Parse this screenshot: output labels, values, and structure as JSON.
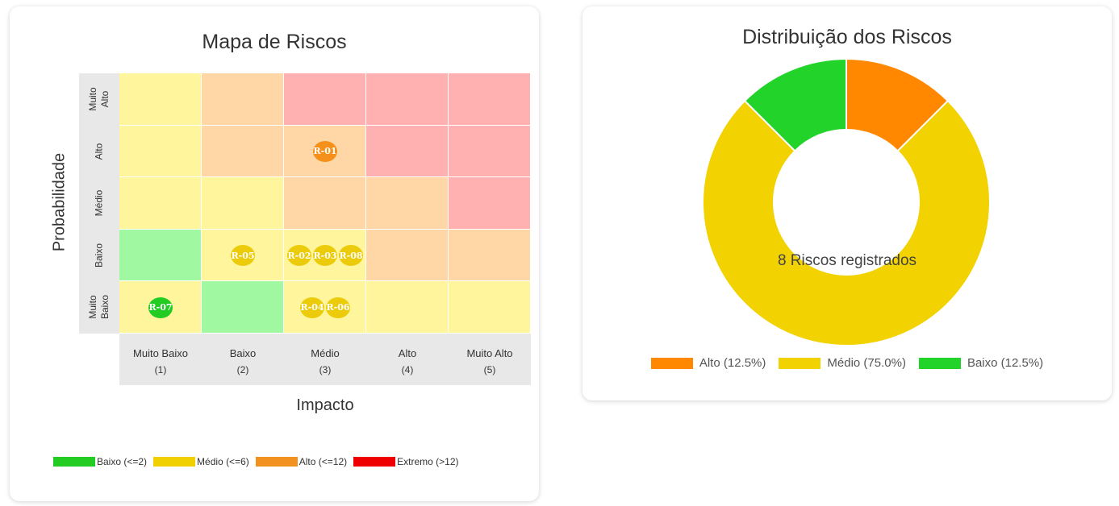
{
  "heatmap": {
    "title": "Mapa de Riscos",
    "ylabel": "Probabilidade",
    "xlabel": "Impacto",
    "probability_levels": [
      "Muito\nAlto",
      "Alto",
      "Médio",
      "Baixo",
      "Muito\nBaixo"
    ],
    "impact_levels": [
      {
        "name": "Muito Baixo",
        "value": "(1)"
      },
      {
        "name": "Baixo",
        "value": "(2)"
      },
      {
        "name": "Médio",
        "value": "(3)"
      },
      {
        "name": "Alto",
        "value": "(4)"
      },
      {
        "name": "Muito Alto",
        "value": "(5)"
      }
    ],
    "legend": [
      {
        "label": "Baixo (<=2)",
        "color": "#22cc22"
      },
      {
        "label": "Médio (<=6)",
        "color": "#f0d000"
      },
      {
        "label": "Alto (<=12)",
        "color": "#f29020"
      },
      {
        "label": "Extremo (>12)",
        "color": "#ee0000"
      }
    ]
  },
  "donut": {
    "title": "Distribuição dos Riscos",
    "center_text": "8 Riscos registrados",
    "legend": [
      {
        "label": "Alto (12.5%)"
      },
      {
        "label": "Médio (75.0%)"
      },
      {
        "label": "Baixo (12.5%)"
      }
    ]
  },
  "chart_data": [
    {
      "type": "heatmap",
      "title": "Mapa de Riscos",
      "xlabel": "Impacto",
      "ylabel": "Probabilidade",
      "x_categories": [
        "Muito Baixo (1)",
        "Baixo (2)",
        "Médio (3)",
        "Alto (4)",
        "Muito Alto (5)"
      ],
      "y_categories_top_to_bottom": [
        "Muito Alto",
        "Alto",
        "Médio",
        "Baixo",
        "Muito Baixo"
      ],
      "cell_colors_top_to_bottom": [
        [
          "#fff59d",
          "#ffd6a6",
          "#ffb0b0",
          "#ffb0b0",
          "#ffb0b0"
        ],
        [
          "#fff59d",
          "#ffd6a6",
          "#ffd6a6",
          "#ffb0b0",
          "#ffb0b0"
        ],
        [
          "#fff59d",
          "#fff59d",
          "#ffd6a6",
          "#ffd6a6",
          "#ffb0b0"
        ],
        [
          "#a0f8a0",
          "#fff59d",
          "#fff59d",
          "#ffd6a6",
          "#ffd6a6"
        ],
        [
          "#fff59d",
          "#a0f8a0",
          "#fff59d",
          "#fff59d",
          "#fff59d"
        ]
      ],
      "risks": [
        {
          "id": "R-01",
          "impact": 3,
          "probability": 4,
          "color": "#f5901a"
        },
        {
          "id": "R-02",
          "impact": 3,
          "probability": 2,
          "color": "#eccc0a"
        },
        {
          "id": "R-03",
          "impact": 3,
          "probability": 2,
          "color": "#eccc0a"
        },
        {
          "id": "R-08",
          "impact": 3,
          "probability": 2,
          "color": "#eccc0a"
        },
        {
          "id": "R-04",
          "impact": 3,
          "probability": 1,
          "color": "#eccc0a"
        },
        {
          "id": "R-06",
          "impact": 3,
          "probability": 1,
          "color": "#eccc0a"
        },
        {
          "id": "R-05",
          "impact": 2,
          "probability": 2,
          "color": "#eccc0a"
        },
        {
          "id": "R-07",
          "impact": 1,
          "probability": 1,
          "color": "#22cc22"
        }
      ]
    },
    {
      "type": "pie",
      "title": "Distribuição dos Riscos",
      "categories": [
        "Alto",
        "Médio",
        "Baixo"
      ],
      "values": [
        12.5,
        75.0,
        12.5
      ],
      "colors": [
        "#ff8800",
        "#f2d200",
        "#22d42a"
      ],
      "legend_position": "bottom"
    }
  ]
}
